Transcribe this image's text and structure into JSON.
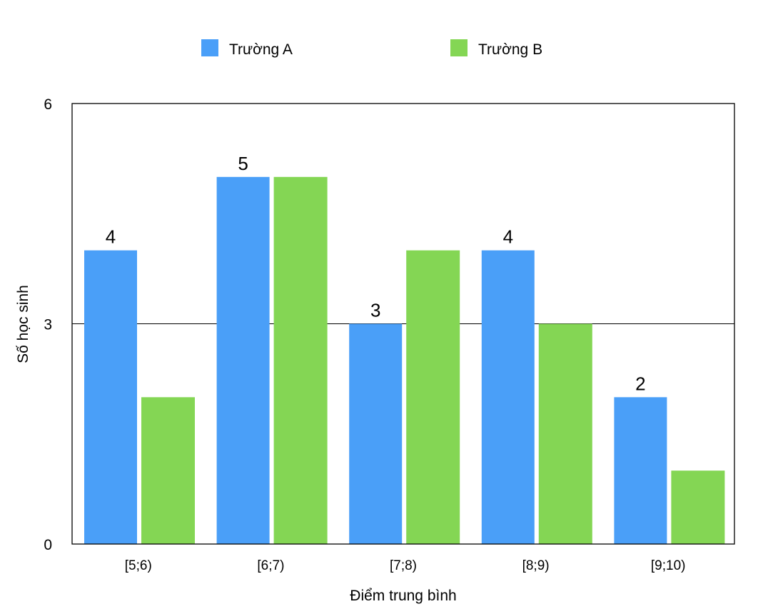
{
  "chart_data": {
    "type": "bar",
    "title": "",
    "xlabel": "Điểm trung bình",
    "ylabel": "Số học sinh",
    "ylim": [
      0,
      6
    ],
    "yticks": [
      0,
      3,
      6
    ],
    "categories": [
      "[5;6)",
      "[6;7)",
      "[7;8)",
      "[8;9)",
      "[9;10)"
    ],
    "series": [
      {
        "name": "Trường A",
        "color": "#4A9FF8",
        "values": [
          4,
          5,
          3,
          4,
          2
        ],
        "show_labels": true
      },
      {
        "name": "Trường B",
        "color": "#84D654",
        "values": [
          2,
          5,
          4,
          3,
          1
        ],
        "show_labels": false
      }
    ],
    "grid": "horizontal at 3",
    "legend_position": "top-center"
  }
}
